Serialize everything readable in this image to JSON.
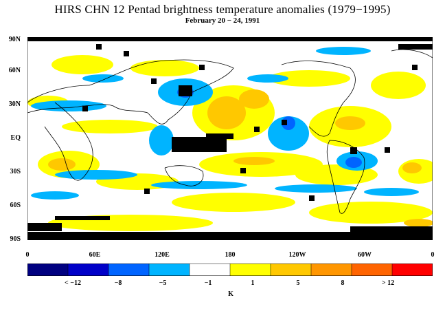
{
  "title": "HIRS CHN 12 Pentad brightness temperature anomalies (1979−1995)",
  "subtitle": "February 20 − 24, 1991",
  "lat_labels": [
    "90N",
    "60N",
    "30N",
    "EQ",
    "30S",
    "60S",
    "90S"
  ],
  "lon_labels": [
    "0",
    "60E",
    "120E",
    "180",
    "120W",
    "60W",
    "0"
  ],
  "colorbar": {
    "colors": [
      "#000080",
      "#0000c8",
      "#0064ff",
      "#00b4ff",
      "#ffffff",
      "#ffff00",
      "#ffc800",
      "#ff9600",
      "#ff6400",
      "#ff0000"
    ],
    "tick_labels": [
      "< −12",
      "−8",
      "−5",
      "−1",
      "1",
      "5",
      "8",
      "> 12"
    ],
    "unit": "K"
  },
  "missing_color": "#000000"
}
